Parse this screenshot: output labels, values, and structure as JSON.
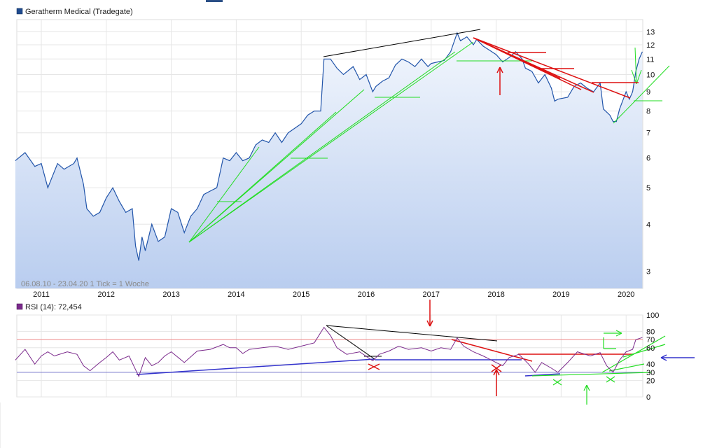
{
  "chart_data": [
    {
      "type": "line",
      "title": "Geratherm Medical (Tradegate)",
      "watermark": "06.08.10 - 23.04.20   1 Tick = 1 Woche",
      "x_tick_labels": [
        "2011",
        "2012",
        "2013",
        "2014",
        "2015",
        "2016",
        "2017",
        "2018",
        "2019",
        "2020"
      ],
      "y_scale": "log",
      "ylim": [
        2.7,
        14
      ],
      "y_ticks": [
        3,
        4,
        5,
        6,
        7,
        8,
        9,
        10,
        11,
        12,
        13
      ],
      "grid": true,
      "series": [
        {
          "name": "Geratherm Medical (Tradegate)",
          "color": "#2255aa",
          "fill": "gradient-blue",
          "points": [
            [
              2010.6,
              5.9
            ],
            [
              2010.75,
              6.2
            ],
            [
              2010.9,
              5.7
            ],
            [
              2011.0,
              5.8
            ],
            [
              2011.1,
              5.0
            ],
            [
              2011.25,
              5.8
            ],
            [
              2011.35,
              5.6
            ],
            [
              2011.5,
              5.8
            ],
            [
              2011.55,
              6.0
            ],
            [
              2011.65,
              5.1
            ],
            [
              2011.7,
              4.4
            ],
            [
              2011.8,
              4.2
            ],
            [
              2011.9,
              4.3
            ],
            [
              2012.0,
              4.7
            ],
            [
              2012.1,
              5.0
            ],
            [
              2012.2,
              4.6
            ],
            [
              2012.3,
              4.3
            ],
            [
              2012.4,
              4.4
            ],
            [
              2012.45,
              3.5
            ],
            [
              2012.5,
              3.2
            ],
            [
              2012.55,
              3.7
            ],
            [
              2012.6,
              3.4
            ],
            [
              2012.7,
              4.0
            ],
            [
              2012.8,
              3.6
            ],
            [
              2012.9,
              3.7
            ],
            [
              2013.0,
              4.4
            ],
            [
              2013.1,
              4.3
            ],
            [
              2013.2,
              3.8
            ],
            [
              2013.3,
              4.2
            ],
            [
              2013.4,
              4.4
            ],
            [
              2013.5,
              4.8
            ],
            [
              2013.6,
              4.9
            ],
            [
              2013.7,
              5.0
            ],
            [
              2013.8,
              6.0
            ],
            [
              2013.9,
              5.9
            ],
            [
              2014.0,
              6.2
            ],
            [
              2014.1,
              5.9
            ],
            [
              2014.2,
              6.0
            ],
            [
              2014.3,
              6.5
            ],
            [
              2014.4,
              6.7
            ],
            [
              2014.5,
              6.6
            ],
            [
              2014.6,
              7.0
            ],
            [
              2014.7,
              6.6
            ],
            [
              2014.8,
              7.0
            ],
            [
              2014.9,
              7.2
            ],
            [
              2015.0,
              7.4
            ],
            [
              2015.1,
              7.8
            ],
            [
              2015.2,
              8.0
            ],
            [
              2015.3,
              8.0
            ],
            [
              2015.35,
              11.0
            ],
            [
              2015.45,
              11.0
            ],
            [
              2015.55,
              10.4
            ],
            [
              2015.65,
              10.0
            ],
            [
              2015.8,
              10.5
            ],
            [
              2015.9,
              9.7
            ],
            [
              2016.0,
              10.0
            ],
            [
              2016.1,
              9.0
            ],
            [
              2016.15,
              9.3
            ],
            [
              2016.25,
              9.6
            ],
            [
              2016.35,
              9.8
            ],
            [
              2016.45,
              10.6
            ],
            [
              2016.55,
              11.0
            ],
            [
              2016.65,
              10.8
            ],
            [
              2016.75,
              10.5
            ],
            [
              2016.85,
              11.0
            ],
            [
              2016.95,
              10.5
            ],
            [
              2017.0,
              10.7
            ],
            [
              2017.1,
              10.8
            ],
            [
              2017.2,
              10.9
            ],
            [
              2017.3,
              11.5
            ],
            [
              2017.4,
              12.9
            ],
            [
              2017.45,
              12.3
            ],
            [
              2017.55,
              12.6
            ],
            [
              2017.65,
              12.0
            ],
            [
              2017.7,
              12.4
            ],
            [
              2017.8,
              11.9
            ],
            [
              2017.9,
              11.6
            ],
            [
              2018.0,
              11.3
            ],
            [
              2018.1,
              10.8
            ],
            [
              2018.2,
              11.1
            ],
            [
              2018.3,
              11.5
            ],
            [
              2018.4,
              11.0
            ],
            [
              2018.45,
              10.4
            ],
            [
              2018.55,
              10.2
            ],
            [
              2018.65,
              9.5
            ],
            [
              2018.75,
              10.0
            ],
            [
              2018.85,
              9.2
            ],
            [
              2018.9,
              8.5
            ],
            [
              2018.95,
              8.6
            ],
            [
              2019.1,
              8.7
            ],
            [
              2019.2,
              9.3
            ],
            [
              2019.3,
              9.5
            ],
            [
              2019.4,
              9.2
            ],
            [
              2019.5,
              9.0
            ],
            [
              2019.6,
              9.5
            ],
            [
              2019.65,
              8.1
            ],
            [
              2019.75,
              7.8
            ],
            [
              2019.8,
              7.5
            ],
            [
              2019.85,
              7.5
            ],
            [
              2019.9,
              8.1
            ],
            [
              2020.0,
              9.0
            ],
            [
              2020.05,
              8.6
            ],
            [
              2020.1,
              9.0
            ],
            [
              2020.15,
              10.2
            ],
            [
              2020.2,
              11.0
            ],
            [
              2020.25,
              11.5
            ]
          ]
        }
      ]
    },
    {
      "type": "line",
      "title": "RSI (14): 72,454",
      "x_tick_labels": [],
      "ylim": [
        0,
        100
      ],
      "y_ticks": [
        0,
        20,
        30,
        40,
        60,
        70,
        80,
        100
      ],
      "reference_lines": [
        30,
        70
      ],
      "series": [
        {
          "name": "RSI (14)",
          "color": "#7b2a8c",
          "points": [
            [
              2010.6,
              45
            ],
            [
              2010.75,
              58
            ],
            [
              2010.9,
              40
            ],
            [
              2011.0,
              50
            ],
            [
              2011.1,
              55
            ],
            [
              2011.2,
              50
            ],
            [
              2011.4,
              55
            ],
            [
              2011.55,
              52
            ],
            [
              2011.65,
              38
            ],
            [
              2011.75,
              32
            ],
            [
              2011.9,
              42
            ],
            [
              2012.0,
              48
            ],
            [
              2012.1,
              55
            ],
            [
              2012.2,
              45
            ],
            [
              2012.35,
              50
            ],
            [
              2012.5,
              25
            ],
            [
              2012.6,
              48
            ],
            [
              2012.7,
              38
            ],
            [
              2012.8,
              42
            ],
            [
              2012.9,
              50
            ],
            [
              2013.0,
              55
            ],
            [
              2013.2,
              42
            ],
            [
              2013.4,
              56
            ],
            [
              2013.6,
              58
            ],
            [
              2013.8,
              64
            ],
            [
              2013.9,
              60
            ],
            [
              2014.0,
              60
            ],
            [
              2014.1,
              53
            ],
            [
              2014.2,
              58
            ],
            [
              2014.4,
              60
            ],
            [
              2014.6,
              62
            ],
            [
              2014.8,
              58
            ],
            [
              2015.0,
              62
            ],
            [
              2015.2,
              66
            ],
            [
              2015.35,
              85
            ],
            [
              2015.45,
              75
            ],
            [
              2015.55,
              60
            ],
            [
              2015.7,
              52
            ],
            [
              2015.9,
              55
            ],
            [
              2016.1,
              44
            ],
            [
              2016.2,
              52
            ],
            [
              2016.35,
              56
            ],
            [
              2016.5,
              62
            ],
            [
              2016.65,
              58
            ],
            [
              2016.85,
              60
            ],
            [
              2017.0,
              56
            ],
            [
              2017.15,
              60
            ],
            [
              2017.3,
              58
            ],
            [
              2017.4,
              72
            ],
            [
              2017.5,
              62
            ],
            [
              2017.65,
              55
            ],
            [
              2017.8,
              50
            ],
            [
              2017.9,
              46
            ],
            [
              2018.0,
              42
            ],
            [
              2018.1,
              38
            ],
            [
              2018.2,
              48
            ],
            [
              2018.35,
              52
            ],
            [
              2018.5,
              40
            ],
            [
              2018.6,
              30
            ],
            [
              2018.7,
              42
            ],
            [
              2018.85,
              35
            ],
            [
              2018.95,
              30
            ],
            [
              2019.1,
              42
            ],
            [
              2019.25,
              55
            ],
            [
              2019.45,
              50
            ],
            [
              2019.6,
              54
            ],
            [
              2019.7,
              38
            ],
            [
              2019.8,
              30
            ],
            [
              2019.9,
              45
            ],
            [
              2020.0,
              55
            ],
            [
              2020.1,
              58
            ],
            [
              2020.15,
              70
            ],
            [
              2020.25,
              72.454
            ]
          ]
        }
      ]
    }
  ]
}
